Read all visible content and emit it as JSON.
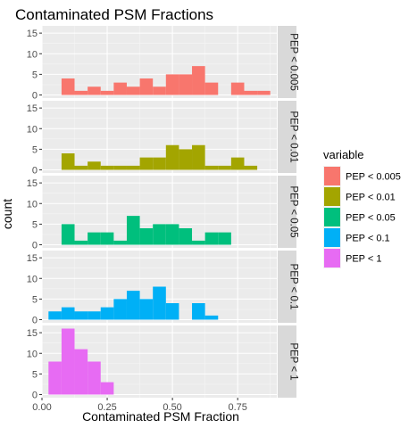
{
  "chart_data": {
    "type": "bar",
    "subtype": "faceted-histogram",
    "title": "Contaminated PSM Fractions",
    "xlabel": "Contaminated PSM Fraction",
    "ylabel": "count",
    "xlim": [
      0,
      0.9
    ],
    "ylim": [
      0,
      16
    ],
    "x_ticks": [
      0,
      0.25,
      0.5,
      0.75
    ],
    "x_tick_labels": [
      "0.00",
      "0.25",
      "0.50",
      "0.75"
    ],
    "y_ticks": [
      0,
      5,
      10,
      15
    ],
    "y_tick_labels": [
      "0",
      "5",
      "10",
      "15"
    ],
    "bin_width": 0.05,
    "grid": true,
    "legend_title": "variable",
    "legend_position": "right",
    "series": [
      {
        "name": "PEP < 0.005",
        "color": "#F8766D",
        "bins": [
          {
            "x0": 0.075,
            "count": 4
          },
          {
            "x0": 0.125,
            "count": 1
          },
          {
            "x0": 0.175,
            "count": 2
          },
          {
            "x0": 0.225,
            "count": 1
          },
          {
            "x0": 0.275,
            "count": 3
          },
          {
            "x0": 0.325,
            "count": 2
          },
          {
            "x0": 0.375,
            "count": 4
          },
          {
            "x0": 0.425,
            "count": 2
          },
          {
            "x0": 0.475,
            "count": 5
          },
          {
            "x0": 0.525,
            "count": 5
          },
          {
            "x0": 0.575,
            "count": 7
          },
          {
            "x0": 0.625,
            "count": 3
          },
          {
            "x0": 0.725,
            "count": 3
          },
          {
            "x0": 0.775,
            "count": 1
          },
          {
            "x0": 0.825,
            "count": 1
          }
        ]
      },
      {
        "name": "PEP < 0.01",
        "color": "#A3A500",
        "bins": [
          {
            "x0": 0.075,
            "count": 4
          },
          {
            "x0": 0.125,
            "count": 1
          },
          {
            "x0": 0.175,
            "count": 2
          },
          {
            "x0": 0.225,
            "count": 1
          },
          {
            "x0": 0.275,
            "count": 1
          },
          {
            "x0": 0.325,
            "count": 1
          },
          {
            "x0": 0.375,
            "count": 3
          },
          {
            "x0": 0.425,
            "count": 3
          },
          {
            "x0": 0.475,
            "count": 6
          },
          {
            "x0": 0.525,
            "count": 5
          },
          {
            "x0": 0.575,
            "count": 6
          },
          {
            "x0": 0.625,
            "count": 1
          },
          {
            "x0": 0.675,
            "count": 1
          },
          {
            "x0": 0.725,
            "count": 3
          },
          {
            "x0": 0.775,
            "count": 1
          }
        ]
      },
      {
        "name": "PEP < 0.05",
        "color": "#00BF7D",
        "bins": [
          {
            "x0": 0.075,
            "count": 5
          },
          {
            "x0": 0.125,
            "count": 1
          },
          {
            "x0": 0.175,
            "count": 3
          },
          {
            "x0": 0.225,
            "count": 3
          },
          {
            "x0": 0.275,
            "count": 1
          },
          {
            "x0": 0.325,
            "count": 7
          },
          {
            "x0": 0.375,
            "count": 4
          },
          {
            "x0": 0.425,
            "count": 5
          },
          {
            "x0": 0.475,
            "count": 5
          },
          {
            "x0": 0.525,
            "count": 4
          },
          {
            "x0": 0.575,
            "count": 1
          },
          {
            "x0": 0.625,
            "count": 3
          },
          {
            "x0": 0.675,
            "count": 3
          }
        ]
      },
      {
        "name": "PEP < 0.1",
        "color": "#00B0F6",
        "bins": [
          {
            "x0": 0.025,
            "count": 2
          },
          {
            "x0": 0.075,
            "count": 3
          },
          {
            "x0": 0.125,
            "count": 2
          },
          {
            "x0": 0.175,
            "count": 2
          },
          {
            "x0": 0.225,
            "count": 3
          },
          {
            "x0": 0.275,
            "count": 5
          },
          {
            "x0": 0.325,
            "count": 7
          },
          {
            "x0": 0.375,
            "count": 5
          },
          {
            "x0": 0.425,
            "count": 8
          },
          {
            "x0": 0.475,
            "count": 4
          },
          {
            "x0": 0.575,
            "count": 4
          },
          {
            "x0": 0.625,
            "count": 1
          }
        ]
      },
      {
        "name": "PEP < 1",
        "color": "#E76BF3",
        "bins": [
          {
            "x0": 0.025,
            "count": 8
          },
          {
            "x0": 0.075,
            "count": 16
          },
          {
            "x0": 0.125,
            "count": 11
          },
          {
            "x0": 0.175,
            "count": 8
          },
          {
            "x0": 0.225,
            "count": 3
          }
        ]
      }
    ]
  }
}
